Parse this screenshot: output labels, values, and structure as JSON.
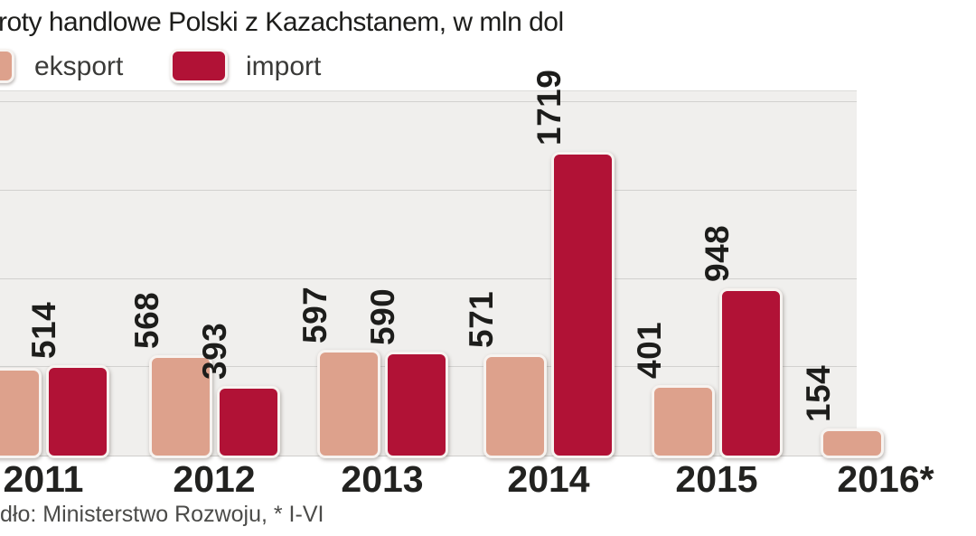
{
  "title": "roty handlowe Polski z Kazachstanem, w mln dol",
  "legend": {
    "eksport_label": "eksport",
    "import_label": "import"
  },
  "source_note": "dło: Ministerstwo Rozwoju, * I-VI",
  "colors": {
    "eksport": "#dda18c",
    "import": "#b11236",
    "plot_bg": "#f0efed",
    "gridline": "#d2d1cf",
    "bar_border": "#f7f3f0",
    "text": "#1d1d1b",
    "source_text": "#4b4b49"
  },
  "chart_data": {
    "type": "bar",
    "title": "roty handlowe Polski z Kazachstanem, w mln dol",
    "unit": "mln dol",
    "categories": [
      "2011",
      "2012",
      "2013",
      "2014",
      "2015",
      "2016*"
    ],
    "series": [
      {
        "name": "eksport",
        "values": [
          494,
          568,
          597,
          571,
          401,
          154
        ]
      },
      {
        "name": "import",
        "values": [
          514,
          393,
          590,
          1719,
          948,
          null
        ]
      }
    ],
    "xlabel": "",
    "ylabel": "",
    "ylim": [
      0,
      2060
    ],
    "gridline_values": [
      500,
      1000,
      1500,
      2000
    ],
    "grid": true,
    "legend_position": "top-left",
    "value_labels_rotated": true
  }
}
